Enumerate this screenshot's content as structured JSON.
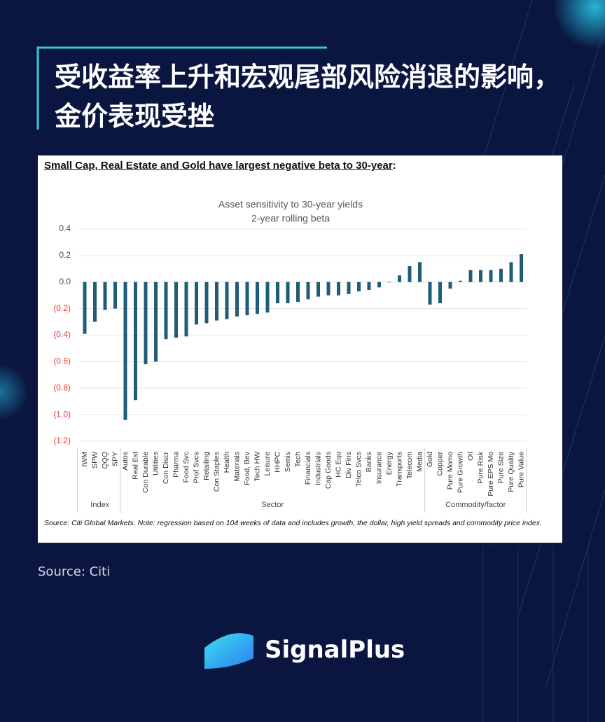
{
  "header": {
    "title": "受收益率上升和宏观尾部风险消退的影响，金价表现受挫"
  },
  "chart_heading": "Small Cap, Real Estate and Gold have largest negative beta to 30-year",
  "chart_heading_suffix": ":",
  "chart_note": "Source: Citi Global Markets. Note: regression based on 104 weeks of data and includes growth, the dollar, high yield spreads and commodity price index.",
  "source": "Source: Citi",
  "brand": "SignalPlus",
  "chart_data": {
    "type": "bar",
    "title": "Asset sensitivity to 30-year yields",
    "subtitle": "2-year rolling beta",
    "categories": [
      "IWM",
      "SPW",
      "QQQ",
      "SPY",
      "Autos",
      "Real Est",
      "Con Durable",
      "Utilities",
      "Con Discr",
      "Pharma",
      "Food Svc",
      "Prof Svcs",
      "Retailing",
      "Con Staples",
      "Health",
      "Materials",
      "Food, Bev",
      "Tech HW",
      "Leisure",
      "HHPC",
      "Semis",
      "Tech",
      "Financials",
      "Industrials",
      "Cap Goods",
      "HC Equ",
      "Div Fins",
      "Telco Svcs",
      "Banks",
      "Insurance",
      "Energy",
      "Transports",
      "Telecom",
      "Media",
      "Gold",
      "Copper",
      "Pure Momo",
      "Pure Growth",
      "Oil",
      "Pure Risk",
      "Pure EPS Mo",
      "Pure Size",
      "Pure Quality",
      "Pure Value"
    ],
    "values": [
      -0.39,
      -0.3,
      -0.21,
      -0.2,
      -1.04,
      -0.89,
      -0.62,
      -0.6,
      -0.43,
      -0.42,
      -0.41,
      -0.32,
      -0.31,
      -0.29,
      -0.28,
      -0.26,
      -0.25,
      -0.24,
      -0.23,
      -0.16,
      -0.16,
      -0.15,
      -0.13,
      -0.11,
      -0.1,
      -0.1,
      -0.09,
      -0.07,
      -0.06,
      -0.04,
      0.0,
      0.05,
      0.12,
      0.15,
      -0.17,
      -0.16,
      -0.05,
      0.01,
      0.09,
      0.09,
      0.09,
      0.1,
      0.15,
      0.21
    ],
    "groups": [
      "Index",
      "Sector",
      "Commodity/factor"
    ],
    "color": "#1f5c78",
    "negative_tick_color": "#e0403a",
    "ylim": [
      -1.2,
      0.4
    ],
    "yticks": [
      0.4,
      0.2,
      {
        "value": 0,
        "label": "0.0"
      },
      {
        "value": -0.2,
        "label": "(0.2)"
      },
      {
        "value": -0.4,
        "label": "(0.4)"
      },
      {
        "value": -0.6,
        "label": "(0.6)"
      },
      {
        "value": -0.8,
        "label": "(0.8)"
      },
      {
        "value": -1.0,
        "label": "(1.0)"
      },
      {
        "value": -1.2,
        "label": "(1.2)"
      }
    ],
    "grid": true
  }
}
